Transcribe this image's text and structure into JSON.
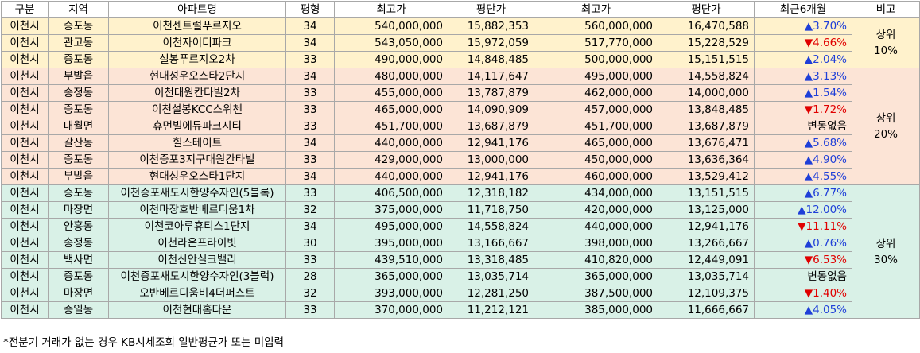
{
  "table": {
    "headers": [
      "구분",
      "지역",
      "아파트명",
      "평형",
      "최고가",
      "평단가",
      "최고가",
      "평단가",
      "최근6개월",
      "비고"
    ],
    "groups": [
      {
        "note_line1": "상위",
        "note_line2": "10%",
        "rows": [
          {
            "division": "이천시",
            "area": "증포동",
            "apt": "이천센트럴푸르지오",
            "size": "34",
            "max1": "540,000,000",
            "unit1": "15,882,353",
            "max2": "560,000,000",
            "unit2": "16,470,588",
            "change": "▲3.70%",
            "dir": "up"
          },
          {
            "division": "이천시",
            "area": "관고동",
            "apt": "이천자이더파크",
            "size": "34",
            "max1": "543,050,000",
            "unit1": "15,972,059",
            "max2": "517,770,000",
            "unit2": "15,228,529",
            "change": "▼4.66%",
            "dir": "down"
          },
          {
            "division": "이천시",
            "area": "증포동",
            "apt": "설봉푸르지오2차",
            "size": "33",
            "max1": "490,000,000",
            "unit1": "14,848,485",
            "max2": "500,000,000",
            "unit2": "15,151,515",
            "change": "▲2.04%",
            "dir": "up"
          }
        ]
      },
      {
        "note_line1": "상위",
        "note_line2": "20%",
        "rows": [
          {
            "division": "이천시",
            "area": "부발읍",
            "apt": "현대성우오스타2단지",
            "size": "34",
            "max1": "480,000,000",
            "unit1": "14,117,647",
            "max2": "495,000,000",
            "unit2": "14,558,824",
            "change": "▲3.13%",
            "dir": "up"
          },
          {
            "division": "이천시",
            "area": "송정동",
            "apt": "이천대원칸타빌2차",
            "size": "33",
            "max1": "455,000,000",
            "unit1": "13,787,879",
            "max2": "462,000,000",
            "unit2": "14,000,000",
            "change": "▲1.54%",
            "dir": "up"
          },
          {
            "division": "이천시",
            "area": "증포동",
            "apt": "이천설봉KCC스위첸",
            "size": "33",
            "max1": "465,000,000",
            "unit1": "14,090,909",
            "max2": "457,000,000",
            "unit2": "13,848,485",
            "change": "▼1.72%",
            "dir": "down"
          },
          {
            "division": "이천시",
            "area": "대월면",
            "apt": "휴먼빌에듀파크시티",
            "size": "33",
            "max1": "451,700,000",
            "unit1": "13,687,879",
            "max2": "451,700,000",
            "unit2": "13,687,879",
            "change": "변동없음",
            "dir": "same"
          },
          {
            "division": "이천시",
            "area": "갈산동",
            "apt": "힐스테이트",
            "size": "34",
            "max1": "440,000,000",
            "unit1": "12,941,176",
            "max2": "465,000,000",
            "unit2": "13,676,471",
            "change": "▲5.68%",
            "dir": "up"
          },
          {
            "division": "이천시",
            "area": "증포동",
            "apt": "이천증포3지구대원칸타빌",
            "size": "33",
            "max1": "429,000,000",
            "unit1": "13,000,000",
            "max2": "450,000,000",
            "unit2": "13,636,364",
            "change": "▲4.90%",
            "dir": "up"
          },
          {
            "division": "이천시",
            "area": "부발읍",
            "apt": "현대성우오스타1단지",
            "size": "34",
            "max1": "440,000,000",
            "unit1": "12,941,176",
            "max2": "460,000,000",
            "unit2": "13,529,412",
            "change": "▲4.55%",
            "dir": "up"
          }
        ]
      },
      {
        "note_line1": "상위",
        "note_line2": "30%",
        "rows": [
          {
            "division": "이천시",
            "area": "증포동",
            "apt": "이천증포새도시한양수자인(5블록)",
            "size": "33",
            "max1": "406,500,000",
            "unit1": "12,318,182",
            "max2": "434,000,000",
            "unit2": "13,151,515",
            "change": "▲6.77%",
            "dir": "up"
          },
          {
            "division": "이천시",
            "area": "마장면",
            "apt": "이천마장호반베르디움1차",
            "size": "32",
            "max1": "375,000,000",
            "unit1": "11,718,750",
            "max2": "420,000,000",
            "unit2": "13,125,000",
            "change": "▲12.00%",
            "dir": "up"
          },
          {
            "division": "이천시",
            "area": "안흥동",
            "apt": "이천코아루휴티스1단지",
            "size": "34",
            "max1": "495,000,000",
            "unit1": "14,558,824",
            "max2": "440,000,000",
            "unit2": "12,941,176",
            "change": "▼11.11%",
            "dir": "down"
          },
          {
            "division": "이천시",
            "area": "송정동",
            "apt": "이천라온프라이빗",
            "size": "30",
            "max1": "395,000,000",
            "unit1": "13,166,667",
            "max2": "398,000,000",
            "unit2": "13,266,667",
            "change": "▲0.76%",
            "dir": "up"
          },
          {
            "division": "이천시",
            "area": "백사면",
            "apt": "이천신안실크밸리",
            "size": "33",
            "max1": "439,510,000",
            "unit1": "13,318,485",
            "max2": "410,820,000",
            "unit2": "12,449,091",
            "change": "▼6.53%",
            "dir": "down"
          },
          {
            "division": "이천시",
            "area": "증포동",
            "apt": "이천증포새도시한양수자인(3블럭)",
            "size": "28",
            "max1": "365,000,000",
            "unit1": "13,035,714",
            "max2": "365,000,000",
            "unit2": "13,035,714",
            "change": "변동없음",
            "dir": "same"
          },
          {
            "division": "이천시",
            "area": "마장면",
            "apt": "오반베르디움비4더퍼스트",
            "size": "32",
            "max1": "393,000,000",
            "unit1": "12,281,250",
            "max2": "387,500,000",
            "unit2": "12,109,375",
            "change": "▼1.40%",
            "dir": "down"
          },
          {
            "division": "이천시",
            "area": "증일동",
            "apt": "이천현대홈타운",
            "size": "33",
            "max1": "370,000,000",
            "unit1": "11,212,121",
            "max2": "385,000,000",
            "unit2": "11,666,667",
            "change": "▲4.05%",
            "dir": "up"
          }
        ]
      }
    ]
  },
  "footnote": "*전분기 거래가 없는 경우 KB시세조회 일반평균가 또는 미입력",
  "colors": {
    "group1_bg": "#fff2cc",
    "group2_bg": "#fce4d6",
    "group3_bg": "#d9f1e7",
    "up": "#1f3fd8",
    "down": "#e00000",
    "border": "#a8a8a8"
  }
}
